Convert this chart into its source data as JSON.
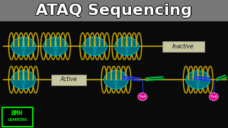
{
  "title": "ATAQ Sequencing",
  "title_bg": "#777777",
  "bg_color": "#0a0a0a",
  "dna_color": "#ccaa00",
  "nucleosome_face": "#006f80",
  "nucleosome_edge": "#00bbcc",
  "nucleosome_grid": "#00bbcc",
  "inactive_label": "Inactive",
  "active_label": "Active",
  "bmh_bg": "#000000",
  "bmh_border": "#00dd00",
  "bmh_text_color": "#00ff00",
  "label_bg": "#c8c8a0",
  "tn5_color": "#ee0099",
  "adapter_blue": "#2233ee",
  "adapter_green": "#00bb44",
  "title_color": "#ffffff",
  "title_shadow": "#000000",
  "title_fontsize": 16
}
